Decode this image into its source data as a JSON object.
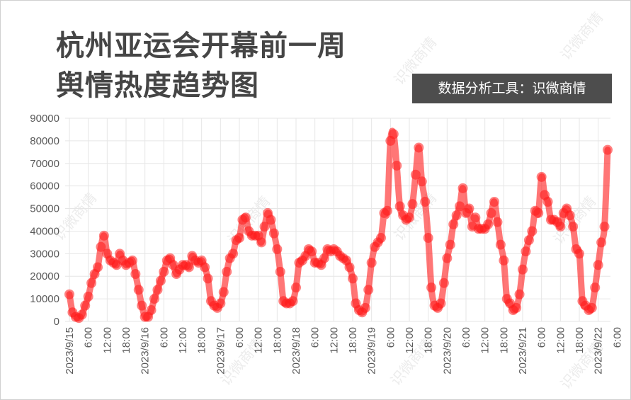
{
  "title_line1": "杭州亚运会开幕前一周",
  "title_line2": "舆情热度趋势图",
  "tool_label": "数据分析工具：识微商情",
  "watermark": "识微商情",
  "colors": {
    "series": "#ff1a1a",
    "title": "#454545",
    "badge_bg": "#4d4d4d",
    "grid": "#e6e6e6",
    "axis_text": "#595959"
  },
  "chart_data": {
    "type": "line",
    "title": "杭州亚运会开幕前一周舆情热度趋势图",
    "xlabel": "",
    "ylabel": "",
    "ylim": [
      0,
      90000
    ],
    "yticks": [
      0,
      10000,
      20000,
      30000,
      40000,
      50000,
      60000,
      70000,
      80000,
      90000
    ],
    "grid": true,
    "legend": "none",
    "x_start": "2023/9/15 0:00",
    "x_interval_hours": 1,
    "x_tick_labels": [
      "2023/9/15",
      "6:00",
      "12:00",
      "18:00",
      "2023/9/16",
      "6:00",
      "12:00",
      "18:00",
      "2023/9/17",
      "6:00",
      "12:00",
      "18:00",
      "2023/9/18",
      "6:00",
      "12:00",
      "18:00",
      "2023/9/19",
      "6:00",
      "12:00",
      "18:00",
      "2023/9/20",
      "6:00",
      "12:00",
      "18:00",
      "2023/9/21",
      "6:00",
      "12:00",
      "18:00",
      "2023/9/22",
      "6:00"
    ],
    "values": [
      12000,
      4000,
      2000,
      1500,
      3000,
      7000,
      11000,
      17000,
      21000,
      24000,
      33000,
      38000,
      30000,
      27000,
      26000,
      25000,
      30000,
      27000,
      25000,
      26000,
      27000,
      21000,
      14000,
      7000,
      2000,
      2000,
      5000,
      10000,
      14000,
      18000,
      22000,
      27000,
      28000,
      25000,
      21000,
      23000,
      25000,
      25000,
      24000,
      29000,
      27000,
      26000,
      27000,
      24000,
      19000,
      9000,
      7000,
      6000,
      8000,
      13000,
      22000,
      28000,
      30000,
      36000,
      37000,
      45000,
      46000,
      40000,
      38000,
      38000,
      38000,
      35000,
      42000,
      48000,
      45000,
      39000,
      32000,
      22000,
      9000,
      8000,
      8000,
      9000,
      15000,
      26000,
      27000,
      29000,
      32000,
      31000,
      26000,
      26000,
      25000,
      28000,
      32000,
      31000,
      32000,
      31000,
      29000,
      28000,
      27000,
      24000,
      19000,
      8000,
      5000,
      4000,
      6000,
      14000,
      26000,
      33000,
      35000,
      37000,
      48000,
      49000,
      80000,
      83000,
      69000,
      51000,
      47000,
      45000,
      46000,
      52000,
      65000,
      77000,
      62000,
      53000,
      37000,
      15000,
      7000,
      6000,
      8000,
      17000,
      28000,
      34000,
      43000,
      47000,
      51000,
      59000,
      48000,
      50000,
      42000,
      46000,
      41000,
      41000,
      41000,
      43000,
      48000,
      53000,
      44000,
      34000,
      27000,
      10000,
      8000,
      5000,
      6000,
      12000,
      23000,
      31000,
      36000,
      40000,
      49000,
      48000,
      64000,
      56000,
      53000,
      45000,
      45000,
      44000,
      42000,
      48000,
      50000,
      47000,
      42000,
      32000,
      30000,
      9000,
      7000,
      5000,
      6000,
      15000,
      25000,
      35000,
      42000,
      76000
    ]
  }
}
